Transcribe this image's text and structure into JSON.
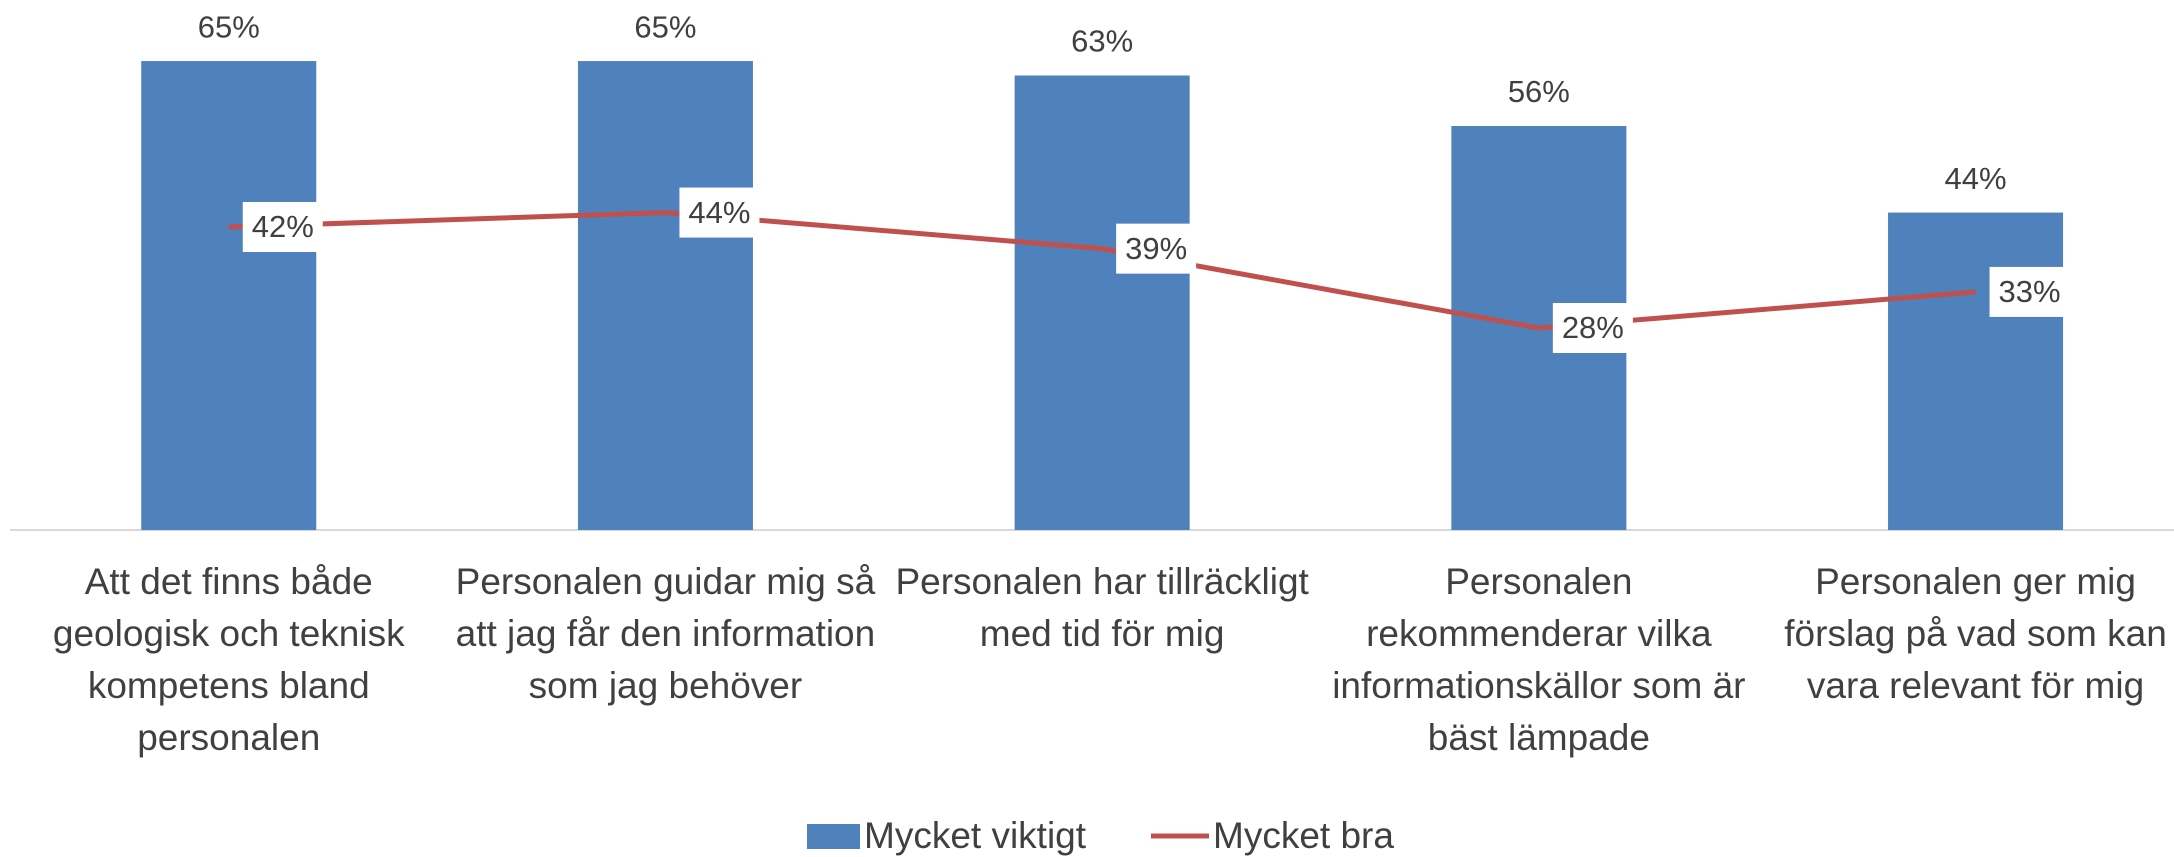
{
  "chart_data": {
    "type": "combo",
    "categories": [
      "Att det finns både geologisk och teknisk kompetens bland personalen",
      "Personalen guidar mig så att jag får den information som jag behöver",
      "Personalen har tillräckligt med tid för mig",
      "Personalen rekommenderar vilka informationskällor som är bäst lämpade",
      "Personalen ger mig förslag på vad som kan vara relevant för mig"
    ],
    "series": [
      {
        "name": "Mycket viktigt",
        "type": "bar",
        "color": "#4f81bd",
        "values": [
          65,
          65,
          63,
          56,
          44
        ],
        "value_labels": [
          "65%",
          "65%",
          "63%",
          "56%",
          "44%"
        ]
      },
      {
        "name": "Mycket bra",
        "type": "line",
        "color": "#c0504d",
        "values": [
          42,
          44,
          39,
          28,
          33
        ],
        "value_labels": [
          "42%",
          "44%",
          "39%",
          "28%",
          "33%"
        ]
      }
    ],
    "ylim": [
      0,
      70
    ],
    "legend": "bottom"
  }
}
